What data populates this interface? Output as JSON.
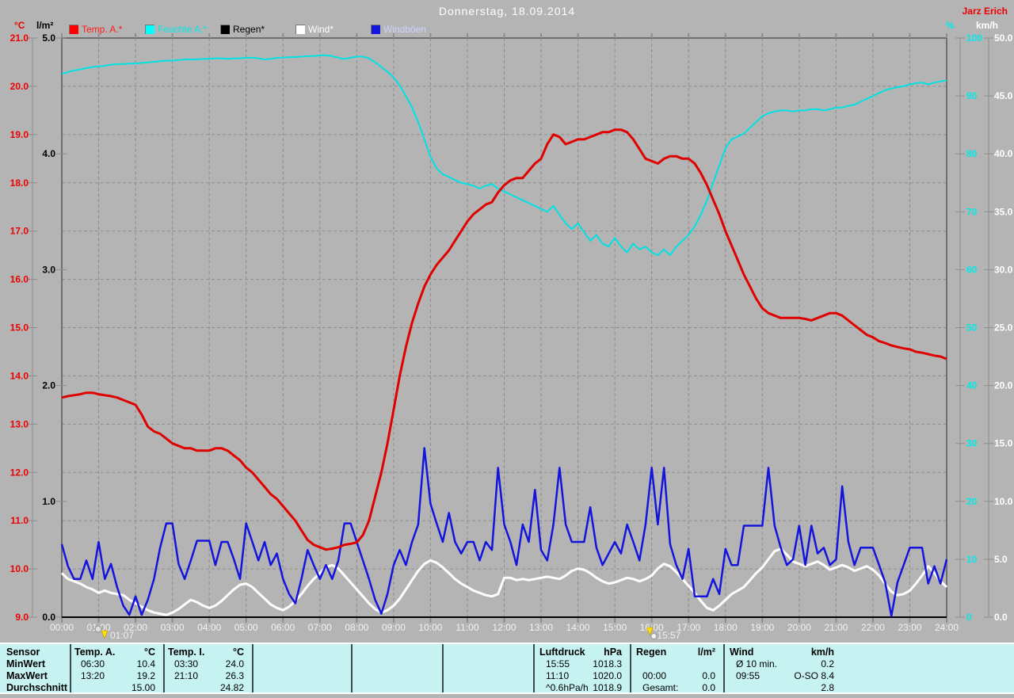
{
  "header": {
    "title": "Donnerstag, 18.09.2014",
    "station": "Jarz Erich"
  },
  "axis_units": {
    "temp": "°C",
    "rain": "l/m²",
    "humidity": "%",
    "wind": "km/h"
  },
  "legend": {
    "items": [
      {
        "label": "Temp. A.*",
        "color": "#ff0000",
        "text_color": "#ff1a1a"
      },
      {
        "label": "Feuchte A.*",
        "color": "#00ffff",
        "text_color": "#00eaea"
      },
      {
        "label": "Regen*",
        "color": "#000000",
        "text_color": "#000000"
      },
      {
        "label": "Wind*",
        "color": "#ffffff",
        "text_color": "#ffffff"
      },
      {
        "label": "Windböen",
        "color": "#1414dd",
        "text_color": "#ccd2ff"
      }
    ]
  },
  "chart_data": {
    "type": "line",
    "title": "Donnerstag, 18.09.2014",
    "x_axis": {
      "start_hour": 0,
      "end_hour": 24,
      "step_minutes": 10,
      "grid": "hourly, dashed"
    },
    "x_tick_labels": [
      "00:00",
      "01:00",
      "02:00",
      "03:00",
      "04:00",
      "05:00",
      "06:00",
      "07:00",
      "08:00",
      "09:00",
      "10:00",
      "11:00",
      "12:00",
      "13:00",
      "14:00",
      "15:00",
      "16:00",
      "17:00",
      "18:00",
      "19:00",
      "20:00",
      "21:00",
      "22:00",
      "23:00",
      "24:00"
    ],
    "axes": {
      "temp": {
        "unit": "°C",
        "min": 9,
        "max": 21,
        "color": "#ee0000",
        "ticks": [
          "21.0",
          "20.0",
          "19.0",
          "18.0",
          "17.0",
          "16.0",
          "15.0",
          "14.0",
          "13.0",
          "12.0",
          "11.0",
          "10.0",
          "9.0"
        ]
      },
      "rain": {
        "unit": "l/m²",
        "min": 0,
        "max": 5,
        "color": "#000000",
        "ticks": [
          "5.0",
          "4.0",
          "3.0",
          "2.0",
          "1.0",
          "0.0"
        ]
      },
      "humidity": {
        "unit": "%",
        "min": 0,
        "max": 100,
        "color": "#00eaea",
        "ticks": [
          "100",
          "90",
          "80",
          "70",
          "60",
          "50",
          "40",
          "30",
          "20",
          "10",
          "0"
        ]
      },
      "wind": {
        "unit": "km/h",
        "min": 0,
        "max": 50,
        "color": "#ffffff",
        "ticks": [
          "50.0",
          "45.0",
          "40.0",
          "35.0",
          "30.0",
          "25.0",
          "20.0",
          "15.0",
          "10.0",
          "5.0",
          "0.0"
        ]
      }
    },
    "markers": [
      {
        "time": "01:07",
        "symbol": "moonrise"
      },
      {
        "time": "15:57",
        "symbol": "moonset"
      }
    ],
    "series": [
      {
        "name": "Feuchte A.*",
        "axis": "humidity",
        "color": "#00e2e2",
        "values": [
          93.8,
          94.1,
          94.4,
          94.6,
          94.8,
          95.0,
          95.1,
          95.2,
          95.4,
          95.5,
          95.5,
          95.6,
          95.6,
          95.7,
          95.8,
          95.9,
          96.0,
          96.1,
          96.1,
          96.2,
          96.3,
          96.3,
          96.3,
          96.4,
          96.4,
          96.5,
          96.5,
          96.4,
          96.5,
          96.5,
          96.6,
          96.6,
          96.5,
          96.3,
          96.4,
          96.6,
          96.6,
          96.7,
          96.7,
          96.8,
          96.9,
          96.9,
          97.0,
          97.0,
          96.9,
          96.6,
          96.4,
          96.6,
          96.8,
          96.8,
          96.5,
          95.8,
          95.0,
          94.2,
          93.2,
          91.8,
          90.0,
          88.0,
          85.5,
          82.5,
          79.5,
          77.5,
          76.5,
          76.0,
          75.5,
          75.0,
          74.8,
          74.5,
          74.0,
          74.5,
          74.8,
          74.0,
          73.5,
          73.0,
          72.5,
          72.0,
          71.5,
          71.0,
          70.5,
          70.0,
          71.0,
          69.5,
          68.0,
          67.0,
          68.0,
          66.5,
          65.0,
          66.0,
          64.5,
          64.0,
          65.5,
          64.0,
          63.0,
          64.5,
          63.5,
          64.0,
          63.0,
          62.5,
          63.5,
          62.5,
          64.0,
          65.0,
          66.0,
          67.5,
          69.5,
          72.0,
          75.0,
          78.0,
          81.0,
          82.5,
          83.0,
          83.5,
          84.5,
          85.5,
          86.5,
          87.0,
          87.3,
          87.5,
          87.5,
          87.3,
          87.5,
          87.5,
          87.7,
          87.7,
          87.5,
          87.7,
          88.0,
          88.0,
          88.3,
          88.5,
          89.0,
          89.5,
          90.0,
          90.5,
          91.0,
          91.3,
          91.5,
          91.7,
          92.0,
          92.2,
          92.3,
          92.0,
          92.3,
          92.5,
          92.7
        ]
      },
      {
        "name": "Regen*",
        "axis": "rain",
        "color": "#000000",
        "constant": 0.0
      },
      {
        "name": "Wind*",
        "axis": "wind",
        "color": "#ffffff",
        "values": [
          3.8,
          3.3,
          3.1,
          2.9,
          2.6,
          2.4,
          2.1,
          2.3,
          2.1,
          2.0,
          1.9,
          1.5,
          1.2,
          0.9,
          0.6,
          0.4,
          0.3,
          0.2,
          0.4,
          0.7,
          1.1,
          1.5,
          1.3,
          1.0,
          0.8,
          1.0,
          1.4,
          1.9,
          2.4,
          2.8,
          2.9,
          2.6,
          2.1,
          1.6,
          1.1,
          0.8,
          0.6,
          0.9,
          1.4,
          2.0,
          2.7,
          3.3,
          3.8,
          4.3,
          4.5,
          4.2,
          3.6,
          3.0,
          2.4,
          1.8,
          1.2,
          0.7,
          0.4,
          0.6,
          1.0,
          1.6,
          2.4,
          3.2,
          4.0,
          4.6,
          4.9,
          4.7,
          4.3,
          3.8,
          3.3,
          2.9,
          2.6,
          2.3,
          2.1,
          1.9,
          1.8,
          2.0,
          3.4,
          3.4,
          3.2,
          3.3,
          3.2,
          3.3,
          3.4,
          3.5,
          3.4,
          3.3,
          3.6,
          4.0,
          4.2,
          4.1,
          3.8,
          3.4,
          3.1,
          2.9,
          3.0,
          3.2,
          3.4,
          3.3,
          3.1,
          3.3,
          3.6,
          4.2,
          4.6,
          4.4,
          3.9,
          3.3,
          2.7,
          2.1,
          1.4,
          0.8,
          0.6,
          1.0,
          1.5,
          2.0,
          2.3,
          2.6,
          3.2,
          3.8,
          4.3,
          5.0,
          5.7,
          5.9,
          5.4,
          4.8,
          4.6,
          4.4,
          4.6,
          4.8,
          4.5,
          4.1,
          4.3,
          4.5,
          4.3,
          4.0,
          4.2,
          4.4,
          4.1,
          3.6,
          2.9,
          2.2,
          1.9,
          2.0,
          2.3,
          2.9,
          3.6,
          4.4,
          3.8,
          3.1,
          2.6
        ]
      },
      {
        "name": "Windböen",
        "axis": "wind",
        "color": "#1414dd",
        "values": [
          6.3,
          4.4,
          3.3,
          3.3,
          4.9,
          3.3,
          6.5,
          3.3,
          4.6,
          2.6,
          1.0,
          0.2,
          1.8,
          0.2,
          1.5,
          3.3,
          6.0,
          8.1,
          8.1,
          4.6,
          3.3,
          4.9,
          6.6,
          6.6,
          6.6,
          4.5,
          6.5,
          6.5,
          5.0,
          3.3,
          8.1,
          6.5,
          4.9,
          6.5,
          4.5,
          5.5,
          3.3,
          2.0,
          1.2,
          3.3,
          5.8,
          4.5,
          3.3,
          4.5,
          3.3,
          4.9,
          8.1,
          8.1,
          6.5,
          4.9,
          3.3,
          1.5,
          0.3,
          2.0,
          4.5,
          5.8,
          4.5,
          6.5,
          8.0,
          14.6,
          9.8,
          8.1,
          6.5,
          9.0,
          6.5,
          5.5,
          6.5,
          6.5,
          4.9,
          6.5,
          5.8,
          12.9,
          8.0,
          6.5,
          4.5,
          8.0,
          6.5,
          11.0,
          5.8,
          4.9,
          8.0,
          12.9,
          8.0,
          6.5,
          6.5,
          6.5,
          9.5,
          6.0,
          4.5,
          5.5,
          6.5,
          5.5,
          8.0,
          6.5,
          4.9,
          8.0,
          12.9,
          8.0,
          12.9,
          6.3,
          4.5,
          3.3,
          5.9,
          1.8,
          1.8,
          1.8,
          3.3,
          2.0,
          5.9,
          4.5,
          4.5,
          7.9,
          7.9,
          7.9,
          7.9,
          12.9,
          7.9,
          6.0,
          4.5,
          5.0,
          7.9,
          4.5,
          7.9,
          5.5,
          6.0,
          4.5,
          5.0,
          11.3,
          6.5,
          4.5,
          6.0,
          6.0,
          6.0,
          4.5,
          3.0,
          0.1,
          3.0,
          4.5,
          6.0,
          6.0,
          6.0,
          2.9,
          4.4,
          2.9,
          5.0
        ]
      },
      {
        "name": "Temp. A.*",
        "axis": "temp",
        "color": "#e00000",
        "values": [
          13.55,
          13.58,
          13.6,
          13.62,
          13.65,
          13.65,
          13.62,
          13.6,
          13.58,
          13.55,
          13.5,
          13.45,
          13.4,
          13.2,
          12.95,
          12.85,
          12.8,
          12.7,
          12.6,
          12.55,
          12.5,
          12.5,
          12.45,
          12.45,
          12.45,
          12.5,
          12.5,
          12.45,
          12.35,
          12.25,
          12.1,
          12.0,
          11.85,
          11.7,
          11.55,
          11.45,
          11.3,
          11.15,
          11.0,
          10.8,
          10.6,
          10.5,
          10.45,
          10.4,
          10.42,
          10.45,
          10.5,
          10.52,
          10.55,
          10.7,
          11.0,
          11.5,
          12.0,
          12.6,
          13.3,
          14.0,
          14.6,
          15.1,
          15.5,
          15.85,
          16.1,
          16.3,
          16.45,
          16.6,
          16.8,
          17.0,
          17.2,
          17.35,
          17.45,
          17.55,
          17.6,
          17.8,
          17.95,
          18.05,
          18.1,
          18.1,
          18.25,
          18.4,
          18.5,
          18.8,
          19.0,
          18.95,
          18.8,
          18.85,
          18.9,
          18.9,
          18.95,
          19.0,
          19.05,
          19.05,
          19.1,
          19.1,
          19.05,
          18.9,
          18.7,
          18.5,
          18.45,
          18.4,
          18.5,
          18.55,
          18.55,
          18.5,
          18.5,
          18.4,
          18.2,
          17.95,
          17.65,
          17.35,
          17.0,
          16.7,
          16.4,
          16.1,
          15.85,
          15.6,
          15.4,
          15.3,
          15.25,
          15.2,
          15.2,
          15.2,
          15.2,
          15.18,
          15.15,
          15.2,
          15.25,
          15.3,
          15.3,
          15.25,
          15.15,
          15.05,
          14.95,
          14.85,
          14.8,
          14.72,
          14.68,
          14.63,
          14.6,
          14.57,
          14.55,
          14.5,
          14.48,
          14.45,
          14.42,
          14.4,
          14.35
        ]
      }
    ]
  },
  "table": {
    "row_labels": [
      "Sensor",
      "MinWert",
      "MaxWert",
      "Durchschnitt"
    ],
    "columns": [
      {
        "header": "Temp. A.",
        "unit": "°C",
        "rows": [
          [
            "06:30",
            "10.4"
          ],
          [
            "13:20",
            "19.2"
          ],
          [
            "",
            "15.00"
          ]
        ]
      },
      {
        "header": "Temp. I.",
        "unit": "°C",
        "rows": [
          [
            "03:30",
            "24.0"
          ],
          [
            "21:10",
            "26.3"
          ],
          [
            "",
            "24.82"
          ]
        ]
      },
      {
        "header": "",
        "unit": "",
        "rows": [
          [
            "",
            ""
          ],
          [
            "",
            ""
          ],
          [
            "",
            ""
          ]
        ]
      },
      {
        "header": "",
        "unit": "",
        "rows": [
          [
            "",
            ""
          ],
          [
            "",
            ""
          ],
          [
            "",
            ""
          ]
        ]
      },
      {
        "header": "",
        "unit": "",
        "rows": [
          [
            "",
            ""
          ],
          [
            "",
            ""
          ],
          [
            "",
            ""
          ]
        ]
      },
      {
        "header": "Luftdruck",
        "unit": "hPa",
        "rows": [
          [
            "15:55",
            "1018.3"
          ],
          [
            "11:10",
            "1020.0"
          ],
          [
            "^0.6hPa/h",
            "1018.9"
          ]
        ]
      },
      {
        "header": "Regen",
        "unit": "l/m²",
        "rows": [
          [
            "",
            ""
          ],
          [
            "00:00",
            "0.0"
          ],
          [
            "Gesamt:",
            "0.0"
          ]
        ]
      },
      {
        "header": "Wind",
        "unit": "km/h",
        "rows": [
          [
            "Ø 10 min.",
            "0.2"
          ],
          [
            "09:55",
            "O-SO 8.4"
          ],
          [
            "",
            "2.8"
          ]
        ]
      }
    ]
  }
}
